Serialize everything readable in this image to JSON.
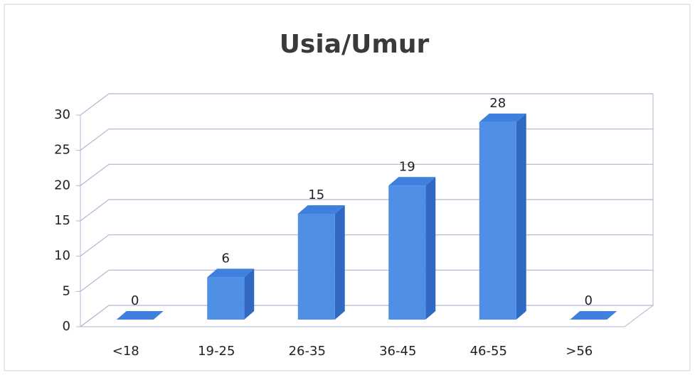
{
  "chart_data": {
    "type": "bar3d",
    "title": "Usia/Umur",
    "categories": [
      "<18",
      "19-25",
      "26-35",
      "36-45",
      "46-55",
      ">56"
    ],
    "values": [
      0,
      6,
      15,
      19,
      28,
      0
    ],
    "color": "#4f8fe6",
    "ylim": [
      0,
      30
    ],
    "yticks": [
      0,
      5,
      10,
      15,
      20,
      25,
      30
    ],
    "grid": true
  }
}
